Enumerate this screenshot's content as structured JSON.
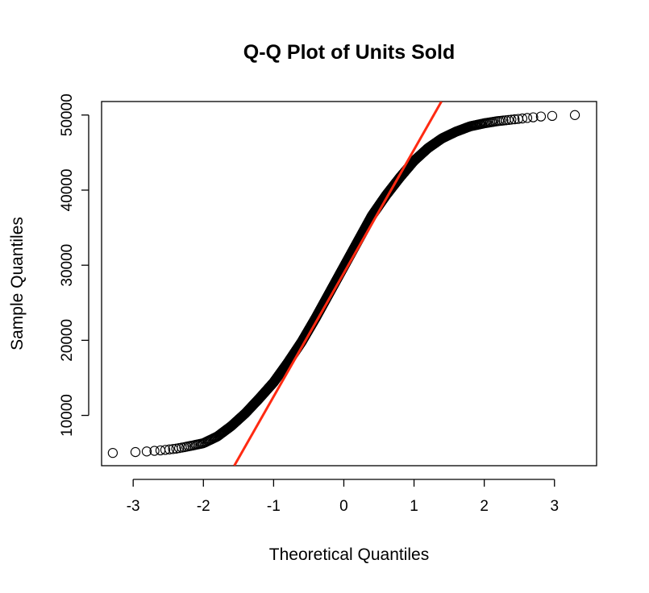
{
  "chart_data": {
    "type": "scatter",
    "title": "Q-Q Plot of Units Sold",
    "xlabel": "Theoretical Quantiles",
    "ylabel": "Sample Quantiles",
    "xlim": [
      -3.45,
      3.6
    ],
    "ylim": [
      3300,
      51800
    ],
    "xticks": [
      -3,
      -2,
      -1,
      0,
      1,
      2,
      3
    ],
    "yticks": [
      10000,
      20000,
      30000,
      40000,
      50000
    ],
    "grid": false,
    "legend": "none",
    "point_style": "open-circle",
    "point_color": "#000000",
    "line_color": "#ff2a12",
    "n_points": 1000,
    "points_note": "",
    "curve": {
      "theoretical": [
        -3.3,
        -3.0,
        -2.8,
        -2.6,
        -2.4,
        -2.2,
        -2.0,
        -1.8,
        -1.6,
        -1.4,
        -1.2,
        -1.0,
        -0.8,
        -0.6,
        -0.4,
        -0.2,
        0.0,
        0.2,
        0.4,
        0.6,
        0.8,
        1.0,
        1.2,
        1.4,
        1.6,
        1.8,
        2.0,
        2.2,
        2.4,
        2.6,
        2.8,
        3.0,
        3.3
      ],
      "sample": [
        5000,
        5100,
        5200,
        5350,
        5550,
        5900,
        6300,
        7200,
        8600,
        10300,
        12300,
        14400,
        17000,
        19800,
        23000,
        26400,
        29800,
        33200,
        36600,
        39300,
        41700,
        43900,
        45600,
        46900,
        47800,
        48500,
        48900,
        49200,
        49400,
        49600,
        49800,
        49900,
        50000
      ]
    },
    "reference_line": {
      "x": [
        -1.56,
        1.39
      ],
      "y": [
        3300,
        51800
      ]
    }
  }
}
